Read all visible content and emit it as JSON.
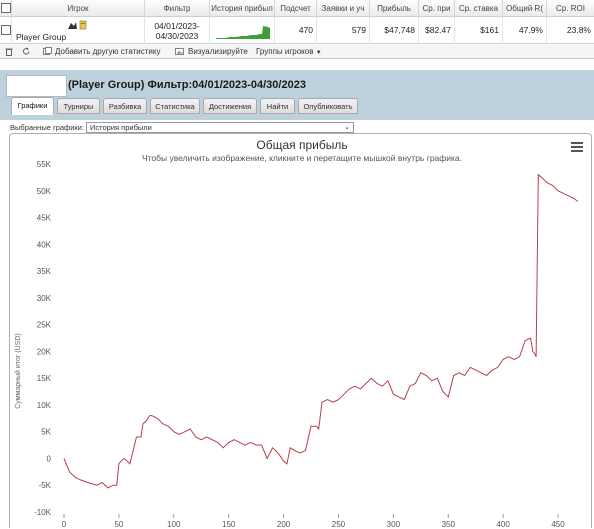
{
  "table": {
    "headers": [
      "Игрок",
      "Фильтр",
      "История прибыл",
      "Подсчет",
      "Заявки и уч",
      "Прибыль",
      "Ср. при",
      "Ср. ставка",
      "Общий R(",
      "Ср. ROI"
    ],
    "row": {
      "player": "Player Group",
      "filter_line1": "04/01/2023-",
      "filter_line2": "04/30/2023",
      "count": "470",
      "entries": "579",
      "profit": "$47,748",
      "avg_profit": "$82.47",
      "avg_stake": "$161",
      "total_roi": "47.9%",
      "avg_roi": "23.8%"
    }
  },
  "toolbar": {
    "add_stats": "Добавить другую статистику",
    "visualize": "Визуализируйте",
    "player_groups": "Группы игроков"
  },
  "report": {
    "title": "(Player Group) Фильтр:04/01/2023-04/30/2023",
    "tabs": [
      "Графики",
      "Турниры",
      "Разбивка",
      "Статистика",
      "Достижения",
      "Найти",
      "Опубликовать"
    ],
    "active_tab": 0,
    "select_label": "Выбранные графики:",
    "select_value": "История прибыли"
  },
  "chart_data": {
    "type": "line",
    "title": "Общая прибыль",
    "subtitle": "Чтобы увеличить изображение, кликните и перетащите мышкой внутрь графика.",
    "ylabel": "Суммарный итог (USD)",
    "xlabel": "",
    "xlim": [
      0,
      470
    ],
    "ylim": [
      -10000,
      55000
    ],
    "x_ticks": [
      0,
      50,
      100,
      150,
      200,
      250,
      300,
      350,
      400,
      450
    ],
    "y_ticks": [
      -10000,
      -5000,
      0,
      5000,
      10000,
      15000,
      20000,
      25000,
      30000,
      35000,
      40000,
      45000,
      50000,
      55000
    ],
    "y_tick_labels": [
      "-10K",
      "-5K",
      "0",
      "5K",
      "10K",
      "15K",
      "20K",
      "25K",
      "30K",
      "35K",
      "40K",
      "45K",
      "50K",
      "55K"
    ],
    "grid": false,
    "color": "#b5404a",
    "series": [
      {
        "x": [
          0,
          5,
          10,
          15,
          22,
          30,
          35,
          40,
          45,
          48,
          50,
          52,
          55,
          60,
          66,
          70,
          72,
          75,
          78,
          80,
          85,
          90,
          95,
          100,
          105,
          110,
          115,
          120,
          125,
          130,
          135,
          140,
          145,
          150,
          155,
          160,
          165,
          170,
          175,
          180,
          185,
          190,
          195,
          200,
          203,
          206,
          210,
          215,
          220,
          225,
          230,
          232,
          235,
          240,
          245,
          250,
          255,
          260,
          265,
          270,
          275,
          280,
          285,
          290,
          295,
          300,
          305,
          310,
          315,
          320,
          325,
          330,
          335,
          340,
          345,
          350,
          355,
          360,
          365,
          370,
          375,
          380,
          385,
          390,
          395,
          400,
          405,
          410,
          415,
          420,
          425,
          427,
          429,
          430,
          432,
          435,
          440,
          445,
          450,
          455,
          460,
          465,
          468
        ],
        "y": [
          0,
          -2500,
          -3500,
          -4000,
          -4500,
          -5000,
          -4500,
          -5500,
          -5000,
          -5000,
          -1000,
          -500,
          0,
          -1000,
          4000,
          4000,
          6500,
          7000,
          8000,
          8000,
          7500,
          6500,
          6000,
          5000,
          4500,
          5000,
          5500,
          4000,
          3500,
          4000,
          3500,
          3000,
          2000,
          3000,
          3500,
          3000,
          2500,
          3000,
          2500,
          2500,
          0,
          2000,
          1000,
          -500,
          -1000,
          2000,
          1500,
          1000,
          1500,
          6000,
          6000,
          5500,
          10500,
          11000,
          10500,
          11000,
          12000,
          13000,
          13500,
          13000,
          14000,
          15000,
          14000,
          13500,
          14500,
          12000,
          11500,
          11000,
          13500,
          14000,
          16000,
          15500,
          14500,
          15000,
          12500,
          11500,
          15500,
          16000,
          15500,
          17000,
          16500,
          16000,
          15500,
          16500,
          17000,
          18500,
          19000,
          18500,
          19000,
          22000,
          22500,
          20000,
          19500,
          19000,
          53000,
          52500,
          51500,
          51000,
          50000,
          49500,
          49000,
          48500,
          48000
        ]
      }
    ]
  }
}
